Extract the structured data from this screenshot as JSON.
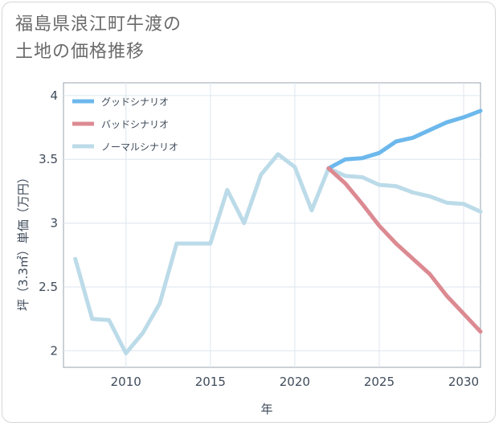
{
  "title_line1": "福島県浪江町牛渡の",
  "title_line2": "土地の価格推移",
  "chart_data": {
    "type": "line",
    "title": "福島県浪江町牛渡の土地の価格推移",
    "xlabel": "年",
    "ylabel": "坪（3.3㎡）単価（万円）",
    "xlim": [
      2006.3,
      2031
    ],
    "ylim": [
      1.87,
      4.1
    ],
    "xticks": [
      2010,
      2015,
      2020,
      2025,
      2030
    ],
    "yticks": [
      2,
      2.5,
      3,
      3.5,
      4
    ],
    "grid": true,
    "legend_position": "top-left",
    "series": [
      {
        "name": "グッドシナリオ",
        "color": "#6cb8ec",
        "x": [
          2022,
          2023,
          2024,
          2025,
          2026,
          2027,
          2028,
          2029,
          2030,
          2031
        ],
        "y": [
          3.43,
          3.5,
          3.51,
          3.55,
          3.64,
          3.67,
          3.73,
          3.79,
          3.83,
          3.88
        ]
      },
      {
        "name": "バッドシナリオ",
        "color": "#dc8a92",
        "x": [
          2022,
          2023,
          2024,
          2025,
          2026,
          2027,
          2028,
          2029,
          2030,
          2031
        ],
        "y": [
          3.43,
          3.31,
          3.15,
          2.98,
          2.84,
          2.72,
          2.6,
          2.43,
          2.29,
          2.15
        ]
      },
      {
        "name": "ノーマルシナリオ",
        "color": "#bcdbe9",
        "x": [
          2007,
          2008,
          2009,
          2010,
          2011,
          2012,
          2013,
          2014,
          2015,
          2016,
          2017,
          2018,
          2019,
          2020,
          2021,
          2022,
          2023,
          2024,
          2025,
          2026,
          2027,
          2028,
          2029,
          2030,
          2031
        ],
        "y": [
          2.72,
          2.25,
          2.24,
          1.98,
          2.14,
          2.37,
          2.84,
          2.84,
          2.84,
          3.26,
          3.0,
          3.38,
          3.54,
          3.44,
          3.1,
          3.43,
          3.37,
          3.36,
          3.3,
          3.29,
          3.24,
          3.21,
          3.16,
          3.15,
          3.09
        ]
      }
    ]
  }
}
